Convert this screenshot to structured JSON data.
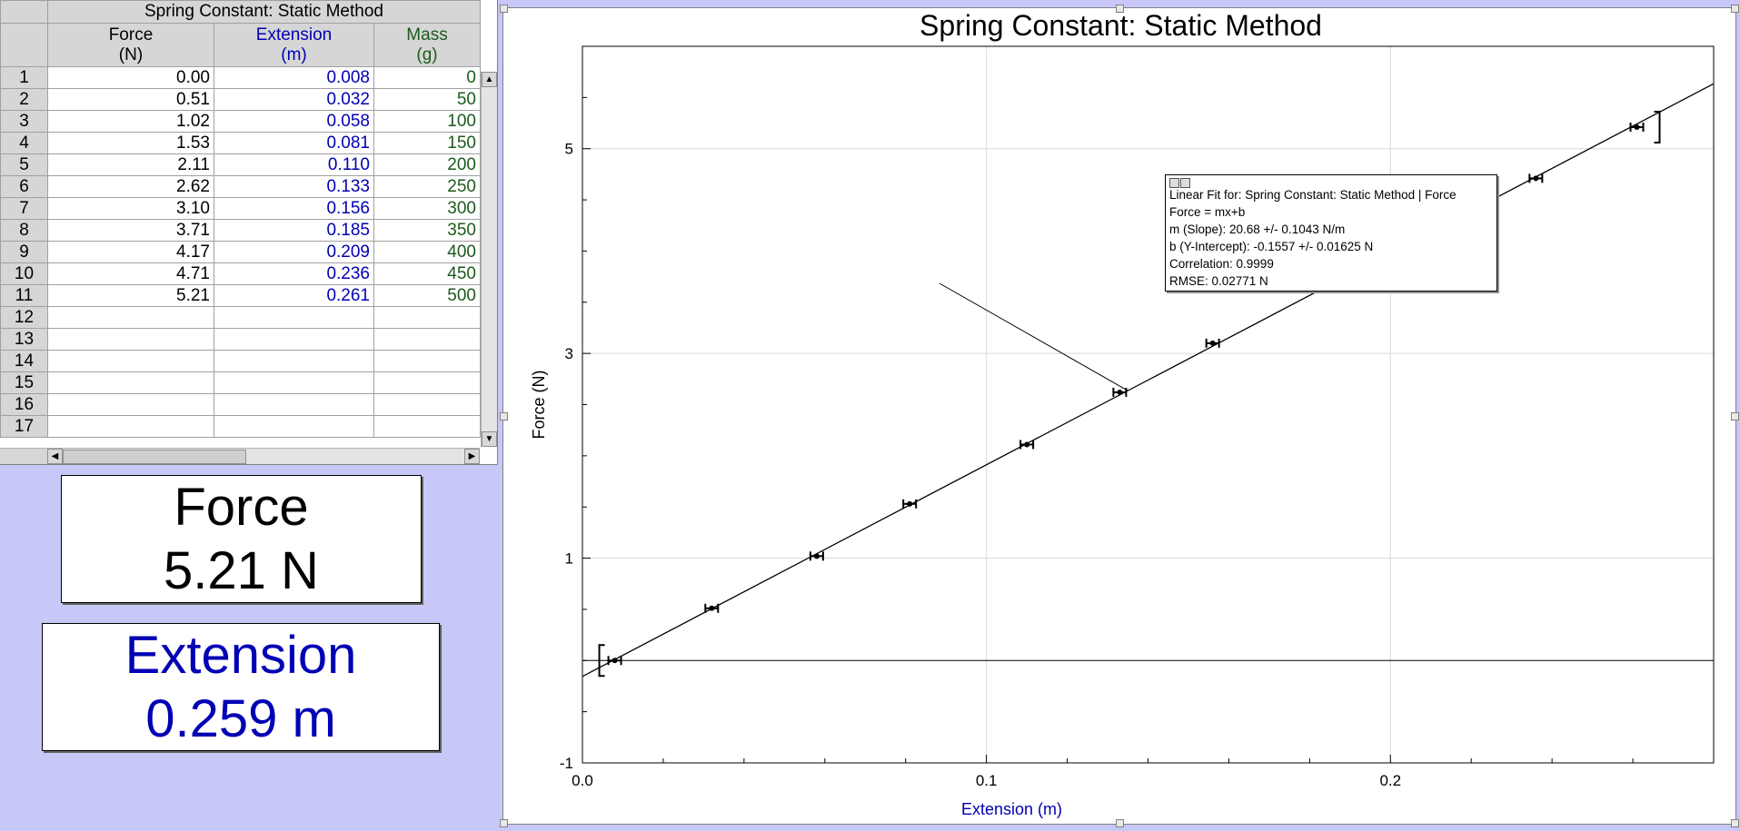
{
  "table": {
    "title": "Spring Constant: Static Method",
    "columns": [
      {
        "name": "Force",
        "unit": "(N)",
        "color": "#000000"
      },
      {
        "name": "Extension",
        "unit": "(m)",
        "color": "#0000b4"
      },
      {
        "name": "Mass",
        "unit": "(g)",
        "color": "#1d5a1d"
      }
    ],
    "row_numbers": [
      "1",
      "2",
      "3",
      "4",
      "5",
      "6",
      "7",
      "8",
      "9",
      "10",
      "11",
      "12",
      "13",
      "14",
      "15",
      "16",
      "17"
    ],
    "rows": [
      [
        "0.00",
        "0.008",
        "0"
      ],
      [
        "0.51",
        "0.032",
        "50"
      ],
      [
        "1.02",
        "0.058",
        "100"
      ],
      [
        "1.53",
        "0.081",
        "150"
      ],
      [
        "2.11",
        "0.110",
        "200"
      ],
      [
        "2.62",
        "0.133",
        "250"
      ],
      [
        "3.10",
        "0.156",
        "300"
      ],
      [
        "3.71",
        "0.185",
        "350"
      ],
      [
        "4.17",
        "0.209",
        "400"
      ],
      [
        "4.71",
        "0.236",
        "450"
      ],
      [
        "5.21",
        "0.261",
        "500"
      ],
      [
        "",
        "",
        ""
      ],
      [
        "",
        "",
        ""
      ],
      [
        "",
        "",
        ""
      ],
      [
        "",
        "",
        ""
      ],
      [
        "",
        "",
        ""
      ],
      [
        "",
        "",
        ""
      ]
    ]
  },
  "meters": {
    "force": {
      "label": "Force",
      "value": "5.21 N"
    },
    "extension": {
      "label": "Extension",
      "value": "0.259 m"
    }
  },
  "fit": {
    "lines": [
      "Linear Fit for: Spring Constant: Static Method | Force",
      "Force = mx+b",
      "m (Slope): 20.68 +/- 0.1043 N/m",
      "b (Y-Intercept): -0.1557 +/- 0.01625 N",
      "Correlation: 0.9999",
      "RMSE: 0.02771 N"
    ]
  },
  "chart_data": {
    "type": "scatter",
    "title": "Spring Constant: Static Method",
    "xlabel": "Extension (m)",
    "ylabel": "Force (N)",
    "xlim": [
      0.0,
      0.28
    ],
    "ylim": [
      -1,
      6
    ],
    "x_ticks": [
      "0.0",
      "0.1",
      "0.2"
    ],
    "y_ticks": [
      "-1",
      "1",
      "3",
      "5"
    ],
    "grid": true,
    "series": [
      {
        "x": [
          0.008,
          0.032,
          0.058,
          0.081,
          0.11,
          0.133,
          0.156,
          0.185,
          0.209,
          0.236,
          0.261
        ],
        "y": [
          0.0,
          0.51,
          1.02,
          1.53,
          2.11,
          2.62,
          3.1,
          3.71,
          4.17,
          4.71,
          5.21
        ],
        "color": "#000000"
      }
    ],
    "fit": {
      "slope": 20.68,
      "intercept": -0.1557,
      "color": "#000000"
    },
    "title_color": "#000000",
    "xlabel_color": "#0000b4"
  }
}
